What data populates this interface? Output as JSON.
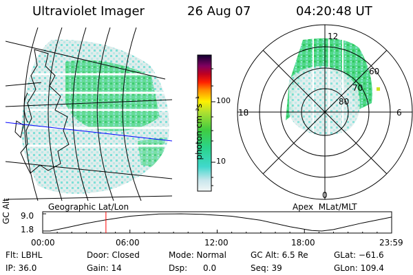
{
  "header": {
    "instrument": "Ultraviolet Imager",
    "date": "26 Aug 07",
    "time": "04:20:48 UT"
  },
  "colorbar": {
    "unit_label": "photon cm⁻²s⁻¹",
    "ticks": [
      "100",
      "10"
    ]
  },
  "left_map": {
    "caption": "Geographic Lat/Lon"
  },
  "polar_map": {
    "caption": "Apex  MLat/MLT",
    "mlt_labels": {
      "top": "12",
      "bottom": "0",
      "left": "18",
      "right": "6"
    },
    "lat_labels": [
      "60",
      "70",
      "80"
    ]
  },
  "altitude_plot": {
    "ylabel": "GC Alt",
    "y_ticks": [
      "9.0",
      "1.8"
    ],
    "x_ticks": [
      "00:00",
      "06:00",
      "12:00",
      "18:00",
      "23:59"
    ],
    "current_time_hours": 4.35,
    "curve": [
      [
        0,
        1.8
      ],
      [
        0.5,
        1.8
      ],
      [
        1.5,
        3.0
      ],
      [
        3,
        5.0
      ],
      [
        4.35,
        6.5
      ],
      [
        6,
        8.0
      ],
      [
        8,
        8.9
      ],
      [
        9.5,
        9.0
      ],
      [
        11,
        8.8
      ],
      [
        13,
        8.0
      ],
      [
        15,
        6.3
      ],
      [
        17,
        3.6
      ],
      [
        18.5,
        2.0
      ],
      [
        19.2,
        1.8
      ],
      [
        20,
        2.4
      ],
      [
        22,
        5.2
      ],
      [
        23.98,
        7.6
      ]
    ]
  },
  "status": {
    "flt": "Flt: LBHL",
    "ip": "IP: 36.0",
    "door": "Door: Closed",
    "gain": "Gain: 14",
    "mode": "Mode: Normal",
    "dsp": "Dsp:      0.0",
    "gc_alt": "GC Alt: 6.5 Re",
    "seq": "Seq: 39",
    "glat": "GLat: −61.6",
    "glon": "GLon: 109.4"
  },
  "colors": {
    "blue_line": "#0000ff",
    "time_marker": "#ff0000"
  }
}
